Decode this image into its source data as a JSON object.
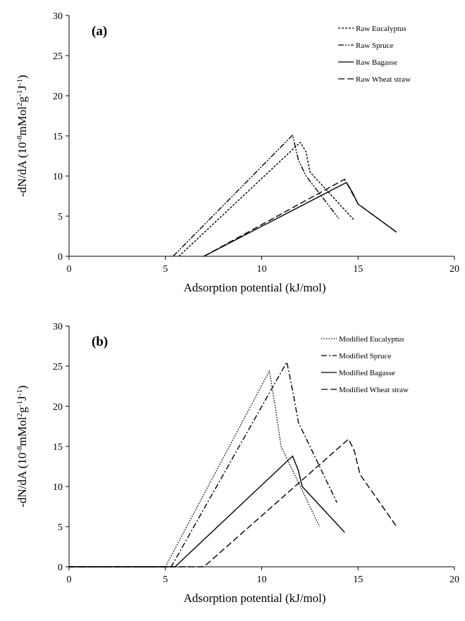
{
  "chart_data": [
    {
      "type": "line",
      "panel_label": "(a)",
      "xlabel": "Adsorption potential (kJ/mol)",
      "ylabel": "-dN/dA (10",
      "ylabel_sup1": "-8",
      "ylabel_mid": "mMol",
      "ylabel_sup2": "2",
      "ylabel_mid2": "g",
      "ylabel_sup3": "-1",
      "ylabel_mid3": "J",
      "ylabel_sup4": "-1",
      "ylabel_end": ")",
      "xlim": [
        0,
        20
      ],
      "ylim": [
        0,
        30
      ],
      "xticks": [
        0,
        5,
        10,
        15,
        20
      ],
      "yticks": [
        0,
        5,
        10,
        15,
        20,
        25,
        30
      ],
      "legend_position": "top-right",
      "grid": false,
      "series": [
        {
          "name": "Raw Eucalyptus",
          "dash": "dash-short",
          "x": [
            5.7,
            12.0,
            12.3,
            12.5,
            14.8
          ],
          "y": [
            0,
            14.2,
            13.0,
            10.5,
            4.5
          ]
        },
        {
          "name": "Raw Spruce",
          "dash": "dash-dot-dot",
          "x": [
            5.4,
            11.6,
            11.9,
            12.3,
            14.0
          ],
          "y": [
            0,
            15.1,
            12.0,
            10.0,
            4.7
          ]
        },
        {
          "name": "Raw Bagasse",
          "dash": "solid",
          "x": [
            7.0,
            14.4,
            14.7,
            15.0,
            17.0
          ],
          "y": [
            0,
            9.2,
            8.0,
            6.5,
            3.0
          ]
        },
        {
          "name": "Raw Wheat straw",
          "dash": "dash-long",
          "x": [
            7.0,
            14.3,
            14.6,
            15.0,
            17.0
          ],
          "y": [
            0,
            9.6,
            8.3,
            6.5,
            3.0
          ]
        }
      ]
    },
    {
      "type": "line",
      "panel_label": "(b)",
      "xlabel": "Adsorption potential (kJ/mol)",
      "ylabel": "-dN/dA (10",
      "ylabel_sup1": "-8",
      "ylabel_mid": "mMol",
      "ylabel_sup2": "2",
      "ylabel_mid2": "g",
      "ylabel_sup3": "-1",
      "ylabel_mid3": "J",
      "ylabel_sup4": "-1",
      "ylabel_end": ")",
      "xlim": [
        0,
        20
      ],
      "ylim": [
        0,
        30
      ],
      "xticks": [
        0,
        5,
        10,
        15,
        20
      ],
      "yticks": [
        0,
        5,
        10,
        15,
        20,
        25,
        30
      ],
      "legend_position": "top-right",
      "grid": false,
      "series": [
        {
          "name": "Modified Eucalyptus",
          "dash": "dotted",
          "x": [
            0,
            5.0,
            10.4,
            10.7,
            11.0,
            13.0
          ],
          "y": [
            0,
            0,
            24.4,
            20.0,
            15.0,
            5.0
          ]
        },
        {
          "name": "Modified Spruce",
          "dash": "dash-dot",
          "x": [
            0,
            5.3,
            11.3,
            11.6,
            11.9,
            13.9
          ],
          "y": [
            0,
            0,
            25.5,
            22.0,
            18.0,
            8.0
          ]
        },
        {
          "name": "Modified Bagasse",
          "dash": "solid",
          "x": [
            0,
            5.5,
            11.6,
            11.9,
            12.1,
            14.3
          ],
          "y": [
            0,
            0,
            13.8,
            12.0,
            10.0,
            4.3
          ]
        },
        {
          "name": "Modified Wheat straw",
          "dash": "dash-long",
          "x": [
            0,
            7.0,
            14.5,
            14.8,
            15.1,
            17.0
          ],
          "y": [
            0,
            0,
            15.9,
            14.5,
            11.5,
            5.0
          ]
        }
      ]
    }
  ]
}
